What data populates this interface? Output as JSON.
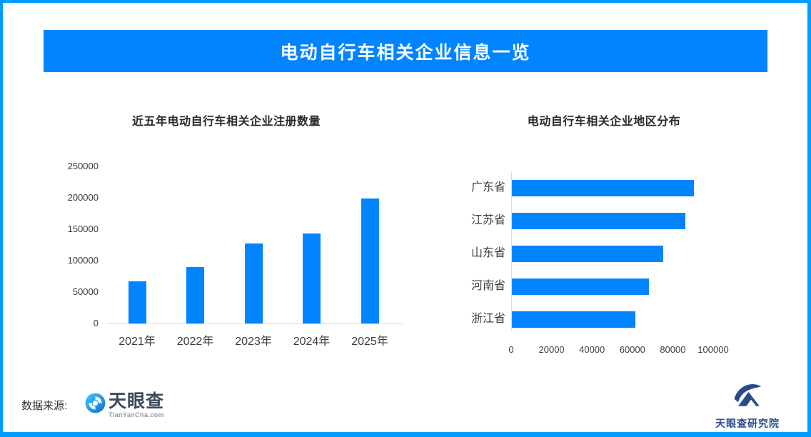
{
  "banner": {
    "title": "电动自行车相关企业信息一览"
  },
  "colors": {
    "banner_bg": "#0084ff",
    "bar_fill": "#0084ff",
    "frame_border": "#009dff",
    "axis_line": "#d9d9d9",
    "brand_navy": "#2b4a8c"
  },
  "footer": {
    "source_label": "数据来源:",
    "tianyancha": {
      "icon": "tianyancha-eye-icon",
      "name": "天眼查",
      "domain": "TianYanCha.com"
    },
    "institute": {
      "icon": "tianyancha-research-icon",
      "name": "天眼查研究院"
    }
  },
  "chart_data": [
    {
      "type": "bar",
      "title": "近五年电动自行车相关企业注册数量",
      "categories": [
        "2021年",
        "2022年",
        "2023年",
        "2024年",
        "2025年"
      ],
      "values": [
        67000,
        90000,
        127000,
        143000,
        199000
      ],
      "xlabel": "",
      "ylabel": "",
      "ylim": [
        0,
        250000
      ],
      "yticks": [
        0,
        50000,
        100000,
        150000,
        200000,
        250000
      ],
      "grid": false,
      "legend": false
    },
    {
      "type": "bar-horizontal",
      "title": "电动自行车相关企业地区分布",
      "categories": [
        "广东省",
        "江苏省",
        "山东省",
        "河南省",
        "浙江省"
      ],
      "values": [
        90000,
        86000,
        75000,
        68000,
        61000
      ],
      "xlabel": "",
      "ylabel": "",
      "xlim": [
        0,
        100000
      ],
      "xticks": [
        0,
        20000,
        40000,
        60000,
        80000,
        100000
      ],
      "grid": false,
      "legend": false
    }
  ]
}
